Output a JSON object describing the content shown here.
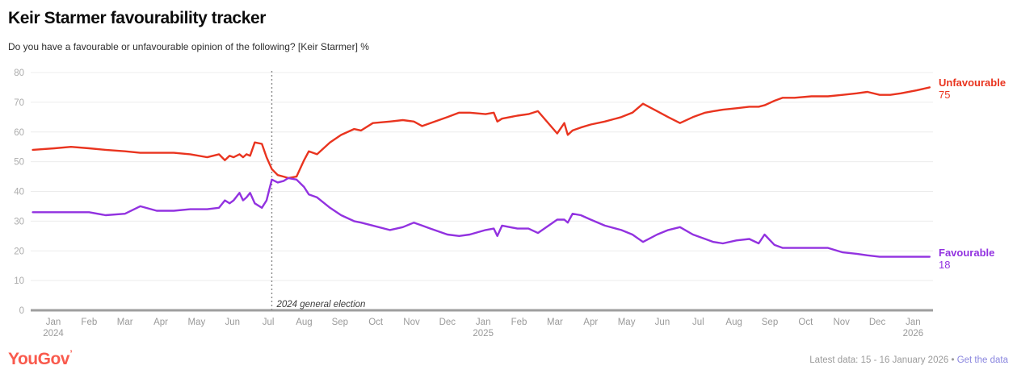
{
  "header": {
    "title": "Keir Starmer favourability tracker",
    "subtitle": "Do you have a favourable or unfavourable opinion of the following? [Keir Starmer] %"
  },
  "footer": {
    "logo": "YouGov",
    "logo_mark": "’",
    "latest": "Latest data: 15 - 16 January 2026",
    "bullet": "•",
    "link": "Get the data"
  },
  "colors": {
    "unfavourable": "#E9341F",
    "favourable": "#9232E0",
    "grid": "#ECECEC",
    "baseline": "#9E9E9E",
    "axis_text": "#ABABAB",
    "x_axis_text": "#9A9A9A",
    "annotation_line": "#8A8A8A",
    "annotation_text": "#3D3D3D",
    "logo": "#F95A4D",
    "link": "#8A86DF"
  },
  "chart_data": {
    "type": "line",
    "title": "Keir Starmer favourability tracker",
    "xlabel": "",
    "ylabel": "%",
    "ylim": [
      0,
      80
    ],
    "grid": "horizontal",
    "legend_position": "right-end-labels",
    "y_ticks": [
      0,
      10,
      20,
      30,
      40,
      50,
      60,
      70,
      80
    ],
    "x_ticks": [
      {
        "label": "Jan",
        "year": "2024"
      },
      {
        "label": "Feb"
      },
      {
        "label": "Mar"
      },
      {
        "label": "Apr"
      },
      {
        "label": "May"
      },
      {
        "label": "Jun"
      },
      {
        "label": "Jul"
      },
      {
        "label": "Aug"
      },
      {
        "label": "Sep"
      },
      {
        "label": "Oct"
      },
      {
        "label": "Nov"
      },
      {
        "label": "Dec"
      },
      {
        "label": "Jan",
        "year": "2025"
      },
      {
        "label": "Feb"
      },
      {
        "label": "Mar"
      },
      {
        "label": "Apr"
      },
      {
        "label": "May"
      },
      {
        "label": "Jun"
      },
      {
        "label": "Jul"
      },
      {
        "label": "Aug"
      },
      {
        "label": "Sep"
      },
      {
        "label": "Oct"
      },
      {
        "label": "Nov"
      },
      {
        "label": "Dec"
      },
      {
        "label": "Jan",
        "year": "2026"
      }
    ],
    "annotation": {
      "label": "2024 general election",
      "date": "2024-07-04"
    },
    "series": [
      {
        "name": "Unfavourable",
        "color": "#E9341F",
        "end_value": "75",
        "data": [
          [
            "2023-12-14",
            54
          ],
          [
            "2024-01-02",
            54.5
          ],
          [
            "2024-01-16",
            55
          ],
          [
            "2024-02-01",
            54.5
          ],
          [
            "2024-02-15",
            54
          ],
          [
            "2024-03-01",
            53.5
          ],
          [
            "2024-03-14",
            53
          ],
          [
            "2024-03-28",
            53
          ],
          [
            "2024-04-12",
            53
          ],
          [
            "2024-04-26",
            52.5
          ],
          [
            "2024-05-10",
            51.5
          ],
          [
            "2024-05-20",
            52.5
          ],
          [
            "2024-05-25",
            50.5
          ],
          [
            "2024-05-29",
            52
          ],
          [
            "2024-06-02",
            51.5
          ],
          [
            "2024-06-07",
            52.5
          ],
          [
            "2024-06-10",
            51.5
          ],
          [
            "2024-06-13",
            52.5
          ],
          [
            "2024-06-16",
            52
          ],
          [
            "2024-06-20",
            56.5
          ],
          [
            "2024-06-26",
            56
          ],
          [
            "2024-06-30",
            51.5
          ],
          [
            "2024-07-04",
            47.5
          ],
          [
            "2024-07-09",
            45.5
          ],
          [
            "2024-07-14",
            45
          ],
          [
            "2024-07-18",
            44.5
          ],
          [
            "2024-07-25",
            45
          ],
          [
            "2024-08-01",
            50.5
          ],
          [
            "2024-08-05",
            53.5
          ],
          [
            "2024-08-12",
            52.5
          ],
          [
            "2024-08-23",
            56.5
          ],
          [
            "2024-09-02",
            59
          ],
          [
            "2024-09-13",
            61
          ],
          [
            "2024-09-19",
            60.5
          ],
          [
            "2024-09-29",
            63
          ],
          [
            "2024-10-13",
            63.5
          ],
          [
            "2024-10-24",
            64
          ],
          [
            "2024-11-03",
            63.5
          ],
          [
            "2024-11-10",
            62
          ],
          [
            "2024-11-17",
            63
          ],
          [
            "2024-12-01",
            65
          ],
          [
            "2024-12-11",
            66.5
          ],
          [
            "2024-12-20",
            66.5
          ],
          [
            "2025-01-03",
            66
          ],
          [
            "2025-01-10",
            66.5
          ],
          [
            "2025-01-13",
            63.5
          ],
          [
            "2025-01-17",
            64.5
          ],
          [
            "2025-01-30",
            65.5
          ],
          [
            "2025-02-09",
            66
          ],
          [
            "2025-02-17",
            67
          ],
          [
            "2025-03-03",
            59.5
          ],
          [
            "2025-03-09",
            63
          ],
          [
            "2025-03-12",
            59
          ],
          [
            "2025-03-16",
            60.5
          ],
          [
            "2025-03-23",
            61.5
          ],
          [
            "2025-04-01",
            62.5
          ],
          [
            "2025-04-13",
            63.5
          ],
          [
            "2025-04-27",
            65
          ],
          [
            "2025-05-06",
            66.5
          ],
          [
            "2025-05-15",
            69.5
          ],
          [
            "2025-05-27",
            67
          ],
          [
            "2025-06-06",
            65
          ],
          [
            "2025-06-16",
            63
          ],
          [
            "2025-06-27",
            65
          ],
          [
            "2025-07-07",
            66.5
          ],
          [
            "2025-07-14",
            67
          ],
          [
            "2025-07-22",
            67.5
          ],
          [
            "2025-08-03",
            68
          ],
          [
            "2025-08-14",
            68.5
          ],
          [
            "2025-08-22",
            68.5
          ],
          [
            "2025-08-27",
            69
          ],
          [
            "2025-09-05",
            70.5
          ],
          [
            "2025-09-12",
            71.5
          ],
          [
            "2025-09-22",
            71.5
          ],
          [
            "2025-10-06",
            72
          ],
          [
            "2025-10-20",
            72
          ],
          [
            "2025-11-02",
            72.5
          ],
          [
            "2025-11-14",
            73
          ],
          [
            "2025-11-23",
            73.5
          ],
          [
            "2025-12-03",
            72.5
          ],
          [
            "2025-12-12",
            72.5
          ],
          [
            "2025-12-21",
            73
          ],
          [
            "2026-01-04",
            74
          ],
          [
            "2026-01-15",
            75
          ]
        ]
      },
      {
        "name": "Favourable",
        "color": "#9232E0",
        "end_value": "18",
        "data": [
          [
            "2023-12-14",
            33
          ],
          [
            "2024-01-02",
            33
          ],
          [
            "2024-01-16",
            33
          ],
          [
            "2024-02-01",
            33
          ],
          [
            "2024-02-15",
            32
          ],
          [
            "2024-03-01",
            32.5
          ],
          [
            "2024-03-14",
            35
          ],
          [
            "2024-03-28",
            33.5
          ],
          [
            "2024-04-12",
            33.5
          ],
          [
            "2024-04-26",
            34
          ],
          [
            "2024-05-10",
            34
          ],
          [
            "2024-05-20",
            34.5
          ],
          [
            "2024-05-25",
            37
          ],
          [
            "2024-05-29",
            36
          ],
          [
            "2024-06-02",
            37
          ],
          [
            "2024-06-07",
            39.5
          ],
          [
            "2024-06-10",
            37
          ],
          [
            "2024-06-13",
            38
          ],
          [
            "2024-06-16",
            39.5
          ],
          [
            "2024-06-20",
            36
          ],
          [
            "2024-06-26",
            34.5
          ],
          [
            "2024-06-30",
            37
          ],
          [
            "2024-07-04",
            44
          ],
          [
            "2024-07-09",
            43
          ],
          [
            "2024-07-14",
            43.5
          ],
          [
            "2024-07-18",
            44.5
          ],
          [
            "2024-07-25",
            44
          ],
          [
            "2024-08-01",
            41.5
          ],
          [
            "2024-08-05",
            39
          ],
          [
            "2024-08-12",
            38
          ],
          [
            "2024-08-23",
            34.5
          ],
          [
            "2024-09-02",
            32
          ],
          [
            "2024-09-13",
            30
          ],
          [
            "2024-09-19",
            29.5
          ],
          [
            "2024-09-29",
            28.5
          ],
          [
            "2024-10-13",
            27
          ],
          [
            "2024-10-24",
            28
          ],
          [
            "2024-11-03",
            29.5
          ],
          [
            "2024-11-10",
            28.5
          ],
          [
            "2024-11-17",
            27.5
          ],
          [
            "2024-12-01",
            25.5
          ],
          [
            "2024-12-11",
            25
          ],
          [
            "2024-12-20",
            25.5
          ],
          [
            "2025-01-03",
            27
          ],
          [
            "2025-01-10",
            27.5
          ],
          [
            "2025-01-13",
            25
          ],
          [
            "2025-01-17",
            28.5
          ],
          [
            "2025-01-30",
            27.5
          ],
          [
            "2025-02-09",
            27.5
          ],
          [
            "2025-02-17",
            26
          ],
          [
            "2025-03-03",
            30.5
          ],
          [
            "2025-03-09",
            30.5
          ],
          [
            "2025-03-12",
            29.5
          ],
          [
            "2025-03-16",
            32.5
          ],
          [
            "2025-03-23",
            32
          ],
          [
            "2025-04-01",
            30.5
          ],
          [
            "2025-04-13",
            28.5
          ],
          [
            "2025-04-27",
            27
          ],
          [
            "2025-05-06",
            25.5
          ],
          [
            "2025-05-15",
            23
          ],
          [
            "2025-05-27",
            25.5
          ],
          [
            "2025-06-06",
            27
          ],
          [
            "2025-06-16",
            28
          ],
          [
            "2025-06-27",
            25.5
          ],
          [
            "2025-07-07",
            24
          ],
          [
            "2025-07-14",
            23
          ],
          [
            "2025-07-22",
            22.5
          ],
          [
            "2025-08-03",
            23.5
          ],
          [
            "2025-08-14",
            24
          ],
          [
            "2025-08-22",
            22.5
          ],
          [
            "2025-08-27",
            25.5
          ],
          [
            "2025-09-05",
            22
          ],
          [
            "2025-09-12",
            21
          ],
          [
            "2025-09-22",
            21
          ],
          [
            "2025-10-06",
            21
          ],
          [
            "2025-10-20",
            21
          ],
          [
            "2025-11-02",
            19.5
          ],
          [
            "2025-11-14",
            19
          ],
          [
            "2025-11-23",
            18.5
          ],
          [
            "2025-12-03",
            18
          ],
          [
            "2025-12-12",
            18
          ],
          [
            "2025-12-21",
            18
          ],
          [
            "2026-01-04",
            18
          ],
          [
            "2026-01-15",
            18
          ]
        ]
      }
    ]
  }
}
